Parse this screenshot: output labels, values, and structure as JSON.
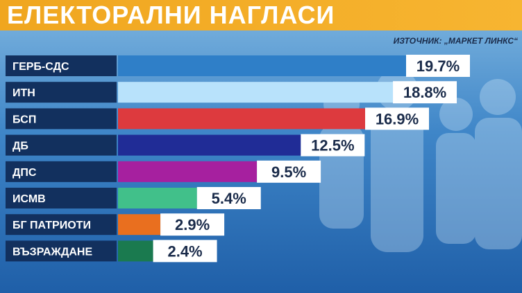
{
  "header": {
    "title": "ЕЛЕКТОРАЛНИ НАГЛАСИ"
  },
  "source_label": "ИЗТОЧНИК: „МАРКЕТ ЛИНКС“",
  "chart_data": {
    "type": "bar",
    "orientation": "horizontal",
    "title": "ЕЛЕКТОРАЛНИ НАГЛАСИ",
    "categories": [
      "ГЕРБ-СДС",
      "ИТН",
      "БСП",
      "ДБ",
      "ДПС",
      "ИСМВ",
      "БГ ПАТРИОТИ",
      "ВЪЗРАЖДАНЕ"
    ],
    "values": [
      19.7,
      18.8,
      16.9,
      12.5,
      9.5,
      5.4,
      2.9,
      2.4
    ],
    "value_labels": [
      "19.7%",
      "18.8%",
      "16.9%",
      "12.5%",
      "9.5%",
      "5.4%",
      "2.9%",
      "2.4%"
    ],
    "colors": [
      "#2f7fc8",
      "#b8e2fb",
      "#dd3a3e",
      "#202c96",
      "#a6209f",
      "#41c08a",
      "#e96f1f",
      "#1a7a4f"
    ],
    "grid": false,
    "legend": "none"
  }
}
